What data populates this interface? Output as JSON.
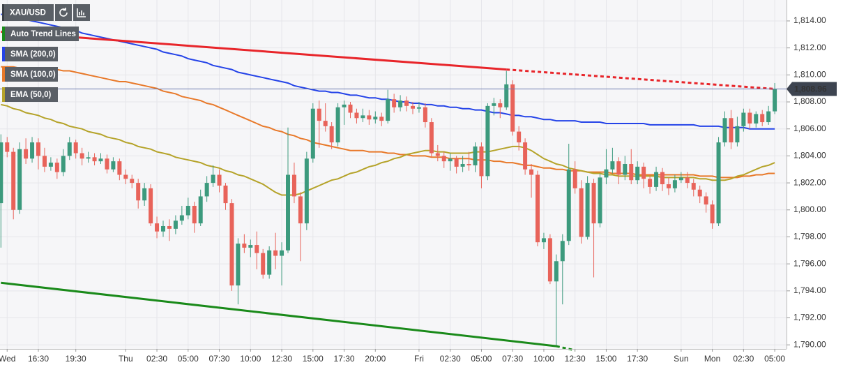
{
  "chart_data": {
    "type": "candlestick",
    "symbol": "XAU/USD",
    "trend_lines_label": "Auto Trend Lines",
    "ylim": [
      1789.7,
      1815.55
    ],
    "yticks": [
      {
        "value": 1790,
        "label": "1,790.00"
      },
      {
        "value": 1792,
        "label": "1,792.00"
      },
      {
        "value": 1794,
        "label": "1,794.00"
      },
      {
        "value": 1796,
        "label": "1,796.00"
      },
      {
        "value": 1798,
        "label": "1,798.00"
      },
      {
        "value": 1800,
        "label": "1,800.00"
      },
      {
        "value": 1802,
        "label": "1,802.00"
      },
      {
        "value": 1804,
        "label": "1,804.00"
      },
      {
        "value": 1806,
        "label": "1,806.00"
      },
      {
        "value": 1808,
        "label": "1,808.00"
      },
      {
        "value": 1810,
        "label": "1,810.00"
      },
      {
        "value": 1812,
        "label": "1,812.00"
      },
      {
        "value": 1814,
        "label": "1,814.00"
      }
    ],
    "grid": true,
    "last_price": {
      "value": 1808.96,
      "label": "1,808.96"
    },
    "up_color": "#3c9a7d",
    "down_color": "#e8635a",
    "categories": [
      null,
      "Wed",
      null,
      null,
      null,
      null,
      "16:30",
      null,
      null,
      null,
      null,
      null,
      "19:30",
      null,
      null,
      null,
      null,
      null,
      null,
      null,
      "Thu",
      null,
      null,
      null,
      null,
      "02:30",
      null,
      null,
      null,
      null,
      "05:00",
      null,
      null,
      null,
      null,
      "07:30",
      null,
      null,
      null,
      null,
      "10:00",
      null,
      null,
      null,
      null,
      "12:30",
      null,
      null,
      null,
      null,
      "15:00",
      null,
      null,
      null,
      null,
      "17:30",
      null,
      null,
      null,
      null,
      "20:00",
      null,
      null,
      null,
      null,
      null,
      null,
      "Fri",
      null,
      null,
      null,
      null,
      "02:30",
      null,
      null,
      null,
      null,
      "05:00",
      null,
      null,
      null,
      null,
      "07:30",
      null,
      null,
      null,
      null,
      "10:00",
      null,
      null,
      null,
      null,
      "12:30",
      null,
      null,
      null,
      null,
      "15:00",
      null,
      null,
      null,
      null,
      "17:30",
      null,
      null,
      null,
      null,
      null,
      null,
      "Sun",
      null,
      null,
      null,
      null,
      "Mon",
      null,
      null,
      null,
      null,
      "02:30",
      null,
      null,
      null,
      null,
      "05:00"
    ],
    "open": [
      1800.5,
      1805.0,
      1804.3,
      1800.0,
      1804.5,
      1803.8,
      1805.0,
      1804.0,
      1803.2,
      1803.5,
      1802.8,
      1804.0,
      1805.0,
      1804.2,
      1803.8,
      1803.9,
      1803.6,
      1803.8,
      1803.0,
      1803.6,
      1802.6,
      1802.3,
      1802.0,
      1800.7,
      1801.6,
      1799.0,
      1798.4,
      1798.8,
      1798.6,
      1799.2,
      1799.6,
      1800.3,
      1799.0,
      1801.0,
      1802.0,
      1802.6,
      1801.8,
      1800.5,
      1794.4,
      1797.5,
      1797.2,
      1797.4,
      1796.8,
      1795.2,
      1797.0,
      1796.6,
      1797.0,
      1802.6,
      1801.0,
      1799.0,
      1803.8,
      1807.5,
      1806.6,
      1806.2,
      1805.0,
      1807.6,
      1807.8,
      1807.2,
      1806.8,
      1807.0,
      1806.7,
      1806.9,
      1806.6,
      1808.2,
      1807.6,
      1808.1,
      1807.7,
      1807.5,
      1807.6,
      1806.5,
      1804.2,
      1804.0,
      1803.6,
      1803.8,
      1803.2,
      1803.4,
      1803.3,
      1804.7,
      1802.5,
      1807.7,
      1807.9,
      1807.6,
      1809.3,
      1805.8,
      1805.0,
      1803.0,
      1802.6,
      1797.6,
      1797.9,
      1794.7,
      1796.2,
      1797.7,
      1803.0,
      1801.6,
      1798.0,
      1802.0,
      1799.0,
      1802.4,
      1803.0,
      1803.6,
      1802.6,
      1803.4,
      1802.2,
      1803.2,
      1802.3,
      1801.7,
      1802.8,
      1801.9,
      1801.6,
      1802.2,
      1802.4,
      1802.0,
      1801.5,
      1801.0,
      1800.4,
      1799.0,
      1805.0,
      1806.8,
      1805.0,
      1806.2,
      1807.2,
      1806.4,
      1807.1,
      1806.5,
      1807.3
    ],
    "high": [
      1805.6,
      1805.4,
      1804.6,
      1805.0,
      1805.3,
      1805.4,
      1805.3,
      1804.6,
      1803.9,
      1803.8,
      1804.5,
      1805.4,
      1805.2,
      1804.6,
      1804.3,
      1804.2,
      1804.2,
      1804.1,
      1803.9,
      1803.8,
      1803.0,
      1802.6,
      1802.3,
      1802.0,
      1801.9,
      1799.5,
      1799.2,
      1799.3,
      1799.6,
      1800.3,
      1800.9,
      1800.6,
      1801.5,
      1802.5,
      1803.3,
      1803.0,
      1802.0,
      1800.8,
      1797.9,
      1798.2,
      1797.8,
      1798.4,
      1797.1,
      1797.3,
      1798.3,
      1797.6,
      1806.1,
      1803.5,
      1801.3,
      1804.3,
      1807.9,
      1808.1,
      1807.9,
      1806.5,
      1807.9,
      1808.1,
      1808.0,
      1807.5,
      1807.5,
      1807.4,
      1807.3,
      1807.2,
      1808.9,
      1808.6,
      1808.5,
      1808.4,
      1808.0,
      1808.0,
      1807.9,
      1806.8,
      1804.8,
      1804.3,
      1804.2,
      1804.0,
      1804.0,
      1804.3,
      1805.0,
      1805.0,
      1807.9,
      1808.3,
      1808.2,
      1810.3,
      1809.6,
      1806.2,
      1805.3,
      1803.4,
      1802.9,
      1798.3,
      1798.2,
      1796.7,
      1798.2,
      1804.9,
      1803.6,
      1802.2,
      1802.5,
      1802.3,
      1802.7,
      1804.5,
      1804.6,
      1803.9,
      1804.0,
      1804.5,
      1803.6,
      1803.5,
      1802.6,
      1803.2,
      1803.1,
      1802.4,
      1802.6,
      1802.8,
      1802.8,
      1802.3,
      1801.8,
      1801.3,
      1800.7,
      1805.4,
      1807.3,
      1807.4,
      1806.9,
      1807.5,
      1807.5,
      1807.3,
      1807.4,
      1807.7,
      1809.4
    ],
    "low": [
      1797.2,
      1803.9,
      1799.3,
      1799.7,
      1803.4,
      1803.5,
      1803.0,
      1802.8,
      1802.9,
      1802.3,
      1802.5,
      1803.7,
      1803.8,
      1803.3,
      1803.5,
      1803.3,
      1803.4,
      1802.7,
      1802.8,
      1802.2,
      1801.9,
      1801.6,
      1800.1,
      1800.3,
      1798.8,
      1797.9,
      1798.0,
      1797.7,
      1798.2,
      1798.9,
      1799.3,
      1798.3,
      1798.8,
      1800.6,
      1801.7,
      1801.3,
      1800.0,
      1794.0,
      1793.0,
      1796.8,
      1796.5,
      1795.6,
      1794.9,
      1794.9,
      1795.6,
      1794.4,
      1796.8,
      1800.5,
      1796.2,
      1798.5,
      1803.5,
      1804.6,
      1805.8,
      1804.5,
      1804.7,
      1806.3,
      1806.8,
      1806.4,
      1806.5,
      1806.3,
      1806.4,
      1806.2,
      1806.4,
      1807.2,
      1807.3,
      1807.3,
      1807.1,
      1807.2,
      1806.1,
      1803.9,
      1803.6,
      1803.1,
      1802.9,
      1802.7,
      1802.8,
      1802.9,
      1802.8,
      1801.6,
      1802.2,
      1807.0,
      1806.8,
      1807.4,
      1805.5,
      1804.4,
      1802.6,
      1800.9,
      1797.3,
      1797.1,
      1794.5,
      1789.9,
      1793.0,
      1797.4,
      1801.2,
      1797.5,
      1797.8,
      1795.0,
      1798.7,
      1801.9,
      1802.7,
      1801.9,
      1802.2,
      1801.9,
      1801.9,
      1801.6,
      1801.2,
      1801.4,
      1801.4,
      1801.1,
      1801.3,
      1802.0,
      1801.6,
      1801.0,
      1800.5,
      1799.8,
      1798.6,
      1798.8,
      1804.7,
      1804.5,
      1804.7,
      1805.8,
      1806.0,
      1806.1,
      1806.2,
      1806.3,
      1807.1
    ],
    "close": [
      1805.0,
      1804.3,
      1800.0,
      1804.5,
      1803.8,
      1805.0,
      1804.0,
      1803.2,
      1803.5,
      1802.8,
      1804.0,
      1805.0,
      1804.2,
      1803.8,
      1803.9,
      1803.6,
      1803.8,
      1803.0,
      1803.6,
      1802.6,
      1802.3,
      1802.0,
      1800.7,
      1801.6,
      1799.0,
      1798.4,
      1798.8,
      1798.6,
      1799.2,
      1799.6,
      1800.3,
      1799.0,
      1801.0,
      1802.0,
      1802.6,
      1801.8,
      1800.5,
      1794.4,
      1797.5,
      1797.2,
      1797.4,
      1796.8,
      1795.2,
      1797.0,
      1796.6,
      1797.0,
      1802.6,
      1801.0,
      1799.0,
      1803.8,
      1807.5,
      1806.6,
      1806.2,
      1805.0,
      1807.6,
      1807.8,
      1807.2,
      1806.8,
      1807.0,
      1806.7,
      1806.9,
      1806.6,
      1808.2,
      1807.6,
      1808.1,
      1807.7,
      1807.5,
      1807.6,
      1806.5,
      1804.2,
      1804.0,
      1803.6,
      1803.8,
      1803.2,
      1803.4,
      1803.3,
      1804.7,
      1802.5,
      1807.7,
      1807.9,
      1807.6,
      1809.3,
      1805.8,
      1805.0,
      1803.0,
      1802.6,
      1797.6,
      1797.9,
      1794.7,
      1796.2,
      1797.7,
      1803.0,
      1801.6,
      1798.0,
      1802.0,
      1799.0,
      1802.4,
      1803.0,
      1803.6,
      1802.6,
      1803.4,
      1802.2,
      1803.2,
      1802.3,
      1801.7,
      1802.8,
      1801.9,
      1801.6,
      1802.2,
      1802.4,
      1802.0,
      1801.5,
      1801.0,
      1800.4,
      1799.0,
      1805.0,
      1806.8,
      1805.0,
      1806.2,
      1807.2,
      1806.4,
      1807.1,
      1806.5,
      1807.3,
      1808.96
    ],
    "series": [
      {
        "name": "SMA (200,0)",
        "color": "#2443e8",
        "values": [
          1814.5,
          1814.4,
          1814.3,
          1814.2,
          1814.1,
          1814.0,
          1813.9,
          1813.8,
          1813.7,
          1813.6,
          1813.5,
          1813.4,
          1813.3,
          1813.1,
          1813.0,
          1812.9,
          1812.8,
          1812.7,
          1812.6,
          1812.5,
          1812.4,
          1812.3,
          1812.2,
          1812.1,
          1812.0,
          1811.9,
          1811.7,
          1811.6,
          1811.5,
          1811.4,
          1811.2,
          1811.1,
          1811.0,
          1810.9,
          1810.7,
          1810.6,
          1810.5,
          1810.4,
          1810.2,
          1810.1,
          1810.0,
          1809.9,
          1809.8,
          1809.7,
          1809.6,
          1809.5,
          1809.4,
          1809.2,
          1809.1,
          1809.0,
          1808.9,
          1808.8,
          1808.8,
          1808.7,
          1808.7,
          1808.6,
          1808.5,
          1808.5,
          1808.4,
          1808.3,
          1808.3,
          1808.2,
          1808.2,
          1808.1,
          1808.0,
          1808.0,
          1807.9,
          1807.9,
          1807.8,
          1807.8,
          1807.7,
          1807.7,
          1807.6,
          1807.6,
          1807.5,
          1807.5,
          1807.4,
          1807.4,
          1807.3,
          1807.2,
          1807.2,
          1807.1,
          1807.0,
          1807.0,
          1806.9,
          1806.9,
          1806.8,
          1806.7,
          1806.7,
          1806.6,
          1806.6,
          1806.6,
          1806.6,
          1806.5,
          1806.5,
          1806.5,
          1806.5,
          1806.4,
          1806.4,
          1806.4,
          1806.4,
          1806.4,
          1806.4,
          1806.4,
          1806.3,
          1806.3,
          1806.3,
          1806.3,
          1806.3,
          1806.3,
          1806.3,
          1806.3,
          1806.2,
          1806.2,
          1806.2,
          1806.2,
          1806.1,
          1806.1,
          1806.1,
          1806.1,
          1806.0,
          1806.0,
          1806.0,
          1806.0,
          1806.0
        ]
      },
      {
        "name": "SMA (100,0)",
        "color": "#e8792a",
        "values": [
          1810.6,
          1810.6,
          1810.6,
          1810.5,
          1810.5,
          1810.5,
          1810.5,
          1810.4,
          1810.4,
          1810.4,
          1810.3,
          1810.3,
          1810.2,
          1810.1,
          1810.0,
          1809.9,
          1809.8,
          1809.7,
          1809.6,
          1809.5,
          1809.5,
          1809.4,
          1809.3,
          1809.2,
          1809.1,
          1809.0,
          1808.8,
          1808.7,
          1808.6,
          1808.4,
          1808.3,
          1808.2,
          1808.1,
          1807.9,
          1807.8,
          1807.6,
          1807.4,
          1807.2,
          1807.0,
          1806.8,
          1806.6,
          1806.4,
          1806.2,
          1806.1,
          1805.9,
          1805.8,
          1805.6,
          1805.5,
          1805.3,
          1805.2,
          1805.0,
          1804.9,
          1804.8,
          1804.7,
          1804.6,
          1804.5,
          1804.4,
          1804.4,
          1804.4,
          1804.3,
          1804.3,
          1804.3,
          1804.2,
          1804.2,
          1804.1,
          1804.1,
          1804.0,
          1804.0,
          1804.0,
          1803.9,
          1803.9,
          1803.9,
          1803.8,
          1803.8,
          1803.8,
          1803.8,
          1803.7,
          1803.7,
          1803.7,
          1803.6,
          1803.6,
          1803.5,
          1803.5,
          1803.4,
          1803.3,
          1803.3,
          1803.2,
          1803.1,
          1803.1,
          1803.0,
          1803.0,
          1802.9,
          1802.9,
          1802.9,
          1802.8,
          1802.8,
          1802.8,
          1802.8,
          1802.7,
          1802.7,
          1802.7,
          1802.7,
          1802.6,
          1802.6,
          1802.6,
          1802.6,
          1802.6,
          1802.6,
          1802.6,
          1802.6,
          1802.6,
          1802.6,
          1802.5,
          1802.5,
          1802.5,
          1802.4,
          1802.4,
          1802.4,
          1802.4,
          1802.5,
          1802.5,
          1802.6,
          1802.6,
          1802.7,
          1802.7
        ]
      },
      {
        "name": "EMA (50,0)",
        "color": "#b5a329",
        "values": [
          1807.8,
          1807.7,
          1807.5,
          1807.4,
          1807.2,
          1807.1,
          1807.0,
          1806.8,
          1806.7,
          1806.5,
          1806.4,
          1806.2,
          1806.1,
          1806.0,
          1805.8,
          1805.7,
          1805.6,
          1805.4,
          1805.3,
          1805.2,
          1805.0,
          1804.9,
          1804.7,
          1804.6,
          1804.5,
          1804.3,
          1804.2,
          1804.1,
          1803.9,
          1803.8,
          1803.7,
          1803.6,
          1803.5,
          1803.3,
          1803.2,
          1803.1,
          1802.9,
          1802.8,
          1802.6,
          1802.5,
          1802.3,
          1802.1,
          1801.9,
          1801.6,
          1801.3,
          1801.1,
          1801.1,
          1801.1,
          1801.2,
          1801.4,
          1801.6,
          1801.8,
          1802.0,
          1802.2,
          1802.3,
          1802.5,
          1802.7,
          1802.8,
          1803.0,
          1803.2,
          1803.3,
          1803.5,
          1803.6,
          1803.8,
          1803.9,
          1804.1,
          1804.2,
          1804.3,
          1804.4,
          1804.4,
          1804.3,
          1804.3,
          1804.2,
          1804.2,
          1804.2,
          1804.2,
          1804.3,
          1804.3,
          1804.3,
          1804.4,
          1804.5,
          1804.6,
          1804.7,
          1804.7,
          1804.6,
          1804.4,
          1804.1,
          1803.8,
          1803.6,
          1803.4,
          1803.3,
          1803.1,
          1803.0,
          1802.9,
          1802.8,
          1802.7,
          1802.7,
          1802.6,
          1802.6,
          1802.5,
          1802.5,
          1802.5,
          1802.5,
          1802.5,
          1802.5,
          1802.5,
          1802.4,
          1802.4,
          1802.4,
          1802.4,
          1802.4,
          1802.4,
          1802.3,
          1802.3,
          1802.2,
          1802.2,
          1802.2,
          1802.3,
          1802.5,
          1802.6,
          1802.8,
          1803.0,
          1803.2,
          1803.3,
          1803.5
        ]
      }
    ],
    "trend_lines": [
      {
        "color": "#e8252a",
        "x": [
          0,
          81,
          124
        ],
        "values": [
          1813.2,
          1810.4,
          1808.96
        ],
        "dashed_from": 1
      },
      {
        "color": "#1a8a1a",
        "x": [
          0,
          89,
          92
        ],
        "values": [
          1794.6,
          1789.9,
          1789.6
        ],
        "dashed_from": 1
      }
    ]
  }
}
